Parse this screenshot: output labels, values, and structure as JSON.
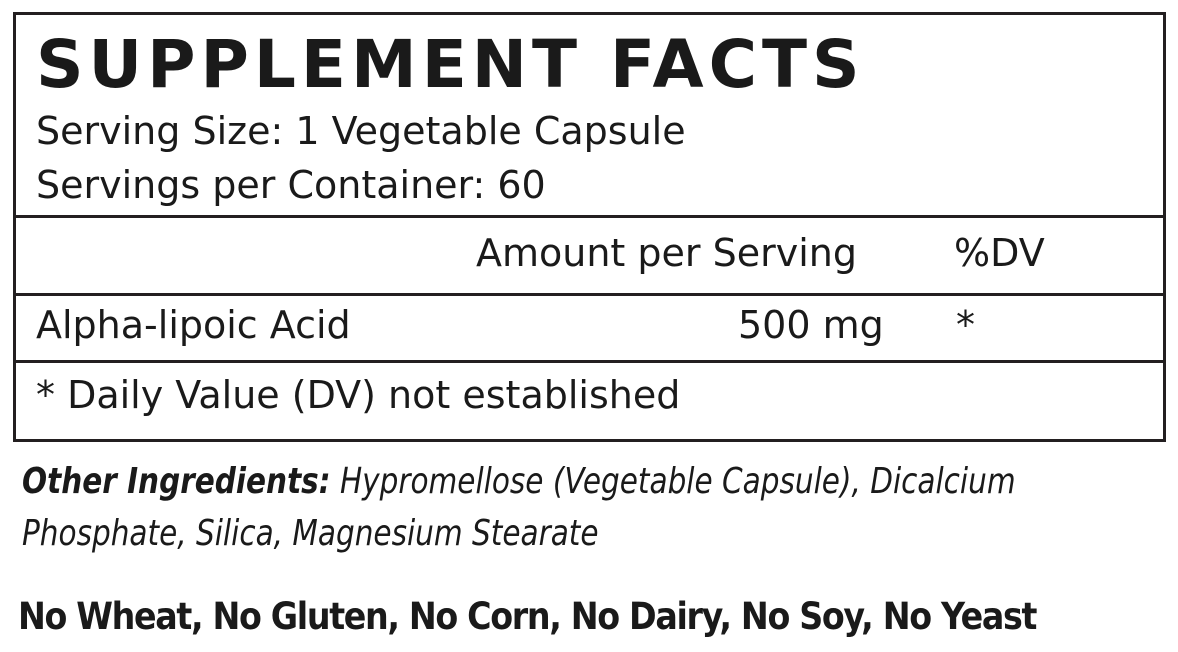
{
  "title": "SUPPLEMENT FACTS",
  "serving_size": "Serving Size:  1 Vegetable Capsule",
  "servings_per_container": "Servings per Container:  60",
  "header": {
    "amount": "Amount per Serving",
    "dv": "%DV"
  },
  "rows": [
    {
      "name": "Alpha-lipoic Acid",
      "amount": "500 mg",
      "dv": "*"
    }
  ],
  "footnote": "* Daily Value (DV) not established",
  "other_ingredients": {
    "label": "Other Ingredients:",
    "text": " Hypromellose (Vegetable Capsule), Dicalcium Phosphate, Silica, Magnesium Stearate"
  },
  "allergen_statement": "No Wheat, No Gluten, No Corn, No Dairy, No Soy, No Yeast"
}
